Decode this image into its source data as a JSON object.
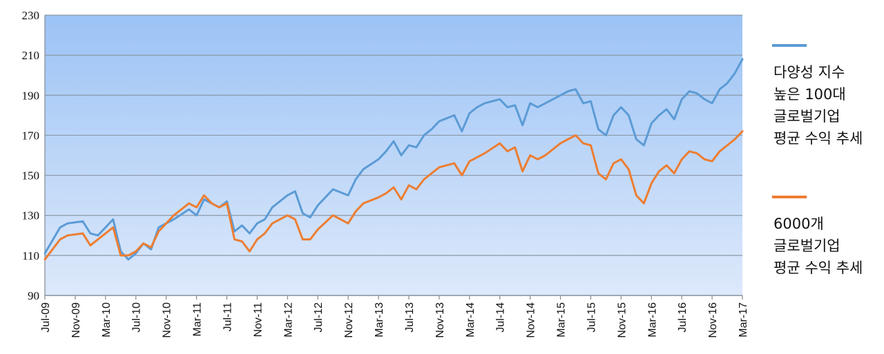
{
  "chart_data": {
    "type": "line",
    "title": "",
    "xlabel": "",
    "ylabel": "",
    "ylim": [
      90,
      230
    ],
    "yticks": [
      90,
      110,
      130,
      150,
      170,
      190,
      210,
      230
    ],
    "x_tick_labels": [
      "Jul-09",
      "Nov-09",
      "Mar-10",
      "Jul-10",
      "Nov-10",
      "Mar-11",
      "Jul-11",
      "Nov-11",
      "Mar-12",
      "Jul-12",
      "Nov-12",
      "Mar-13",
      "Jul-13",
      "Nov-13",
      "Mar-14",
      "Jul-14",
      "Nov-14",
      "Mar-15",
      "Jul-15",
      "Nov-15",
      "Mar-16",
      "Jul-16",
      "Nov-16",
      "Mar-17"
    ],
    "grid": true,
    "legend_position": "right",
    "background": {
      "top": "#9cc3f5",
      "bottom": "#dde9fb"
    },
    "gridline_color": "#8a97a6",
    "series": [
      {
        "name": [
          "다양성 지수",
          "높은 100대",
          "글로벌기업",
          "평균 수익 추세"
        ],
        "color": "#5b9bd5",
        "points": [
          [
            "Jul-09",
            111
          ],
          [
            "Sep-09",
            124
          ],
          [
            "Oct-09",
            126
          ],
          [
            "Dec-09",
            127
          ],
          [
            "Jan-10",
            121
          ],
          [
            "Feb-10",
            120
          ],
          [
            "Apr-10",
            128
          ],
          [
            "May-10",
            112
          ],
          [
            "Jun-10",
            108
          ],
          [
            "Jul-10",
            111
          ],
          [
            "Aug-10",
            116
          ],
          [
            "Sep-10",
            113
          ],
          [
            "Oct-10",
            124
          ],
          [
            "Dec-10",
            128
          ],
          [
            "Feb-11",
            133
          ],
          [
            "Mar-11",
            130
          ],
          [
            "Apr-11",
            138
          ],
          [
            "May-11",
            136
          ],
          [
            "Jun-11",
            134
          ],
          [
            "Jul-11",
            137
          ],
          [
            "Aug-11",
            122
          ],
          [
            "Sep-11",
            125
          ],
          [
            "Oct-11",
            121
          ],
          [
            "Nov-11",
            126
          ],
          [
            "Dec-11",
            128
          ],
          [
            "Jan-12",
            134
          ],
          [
            "Mar-12",
            140
          ],
          [
            "Apr-12",
            142
          ],
          [
            "May-12",
            131
          ],
          [
            "Jun-12",
            129
          ],
          [
            "Jul-12",
            135
          ],
          [
            "Sep-12",
            143
          ],
          [
            "Nov-12",
            140
          ],
          [
            "Dec-12",
            148
          ],
          [
            "Jan-13",
            153
          ],
          [
            "Mar-13",
            158
          ],
          [
            "Apr-13",
            162
          ],
          [
            "May-13",
            167
          ],
          [
            "Jun-13",
            160
          ],
          [
            "Jul-13",
            165
          ],
          [
            "Aug-13",
            164
          ],
          [
            "Sep-13",
            170
          ],
          [
            "Oct-13",
            173
          ],
          [
            "Nov-13",
            177
          ],
          [
            "Jan-14",
            180
          ],
          [
            "Feb-14",
            172
          ],
          [
            "Mar-14",
            181
          ],
          [
            "Apr-14",
            184
          ],
          [
            "May-14",
            186
          ],
          [
            "Jul-14",
            188
          ],
          [
            "Aug-14",
            184
          ],
          [
            "Sep-14",
            185
          ],
          [
            "Oct-14",
            175
          ],
          [
            "Nov-14",
            186
          ],
          [
            "Dec-14",
            184
          ],
          [
            "Jan-15",
            186
          ],
          [
            "Mar-15",
            190
          ],
          [
            "Apr-15",
            192
          ],
          [
            "May-15",
            193
          ],
          [
            "Jun-15",
            186
          ],
          [
            "Jul-15",
            187
          ],
          [
            "Aug-15",
            173
          ],
          [
            "Sep-15",
            170
          ],
          [
            "Oct-15",
            180
          ],
          [
            "Nov-15",
            184
          ],
          [
            "Dec-15",
            180
          ],
          [
            "Jan-16",
            168
          ],
          [
            "Feb-16",
            165
          ],
          [
            "Mar-16",
            176
          ],
          [
            "Apr-16",
            180
          ],
          [
            "May-16",
            183
          ],
          [
            "Jun-16",
            178
          ],
          [
            "Jul-16",
            188
          ],
          [
            "Aug-16",
            192
          ],
          [
            "Sep-16",
            191
          ],
          [
            "Oct-16",
            188
          ],
          [
            "Nov-16",
            186
          ],
          [
            "Dec-16",
            193
          ],
          [
            "Jan-17",
            196
          ],
          [
            "Feb-17",
            201
          ],
          [
            "Mar-17",
            208
          ]
        ]
      },
      {
        "name": [
          "6000개",
          "글로벌기업",
          "평균 수익 추세"
        ],
        "color": "#ed7d31",
        "points": [
          [
            "Jul-09",
            108
          ],
          [
            "Sep-09",
            118
          ],
          [
            "Oct-09",
            120
          ],
          [
            "Dec-09",
            121
          ],
          [
            "Jan-10",
            115
          ],
          [
            "Feb-10",
            118
          ],
          [
            "Apr-10",
            124
          ],
          [
            "May-10",
            110
          ],
          [
            "Jun-10",
            110
          ],
          [
            "Jul-10",
            112
          ],
          [
            "Aug-10",
            116
          ],
          [
            "Sep-10",
            114
          ],
          [
            "Oct-10",
            122
          ],
          [
            "Dec-10",
            130
          ],
          [
            "Feb-11",
            136
          ],
          [
            "Mar-11",
            134
          ],
          [
            "Apr-11",
            140
          ],
          [
            "May-11",
            136
          ],
          [
            "Jun-11",
            134
          ],
          [
            "Jul-11",
            136
          ],
          [
            "Aug-11",
            118
          ],
          [
            "Sep-11",
            117
          ],
          [
            "Oct-11",
            112
          ],
          [
            "Nov-11",
            118
          ],
          [
            "Dec-11",
            121
          ],
          [
            "Jan-12",
            126
          ],
          [
            "Mar-12",
            130
          ],
          [
            "Apr-12",
            128
          ],
          [
            "May-12",
            118
          ],
          [
            "Jun-12",
            118
          ],
          [
            "Jul-12",
            123
          ],
          [
            "Sep-12",
            130
          ],
          [
            "Nov-12",
            126
          ],
          [
            "Dec-12",
            132
          ],
          [
            "Jan-13",
            136
          ],
          [
            "Mar-13",
            139
          ],
          [
            "Apr-13",
            141
          ],
          [
            "May-13",
            144
          ],
          [
            "Jun-13",
            138
          ],
          [
            "Jul-13",
            145
          ],
          [
            "Aug-13",
            143
          ],
          [
            "Sep-13",
            148
          ],
          [
            "Oct-13",
            151
          ],
          [
            "Nov-13",
            154
          ],
          [
            "Jan-14",
            156
          ],
          [
            "Feb-14",
            150
          ],
          [
            "Mar-14",
            157
          ],
          [
            "Apr-14",
            159
          ],
          [
            "May-14",
            161
          ],
          [
            "Jul-14",
            166
          ],
          [
            "Aug-14",
            162
          ],
          [
            "Sep-14",
            164
          ],
          [
            "Oct-14",
            152
          ],
          [
            "Nov-14",
            160
          ],
          [
            "Dec-14",
            158
          ],
          [
            "Jan-15",
            160
          ],
          [
            "Mar-15",
            166
          ],
          [
            "Apr-15",
            168
          ],
          [
            "May-15",
            170
          ],
          [
            "Jun-15",
            166
          ],
          [
            "Jul-15",
            165
          ],
          [
            "Aug-15",
            151
          ],
          [
            "Sep-15",
            148
          ],
          [
            "Oct-15",
            156
          ],
          [
            "Nov-15",
            158
          ],
          [
            "Dec-15",
            153
          ],
          [
            "Jan-16",
            140
          ],
          [
            "Feb-16",
            136
          ],
          [
            "Mar-16",
            146
          ],
          [
            "Apr-16",
            152
          ],
          [
            "May-16",
            155
          ],
          [
            "Jun-16",
            151
          ],
          [
            "Jul-16",
            158
          ],
          [
            "Aug-16",
            162
          ],
          [
            "Sep-16",
            161
          ],
          [
            "Oct-16",
            158
          ],
          [
            "Nov-16",
            157
          ],
          [
            "Dec-16",
            162
          ],
          [
            "Jan-17",
            165
          ],
          [
            "Feb-17",
            168
          ],
          [
            "Mar-17",
            172
          ]
        ]
      }
    ]
  }
}
